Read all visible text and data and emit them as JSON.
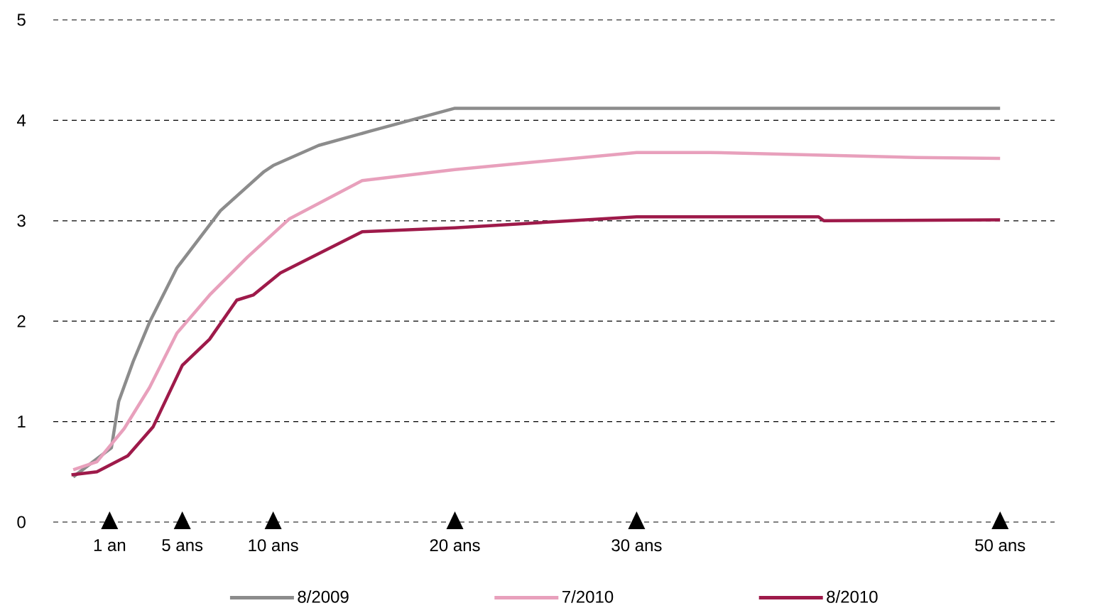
{
  "chart_data": {
    "type": "line",
    "xlim": [
      -2.1,
      53
    ],
    "ylim": [
      0,
      5
    ],
    "xticks": [
      {
        "value": 1,
        "label": "1 an"
      },
      {
        "value": 5,
        "label": "5 ans"
      },
      {
        "value": 10,
        "label": "10 ans"
      },
      {
        "value": 20,
        "label": "20 ans"
      },
      {
        "value": 30,
        "label": "30 ans"
      },
      {
        "value": 50,
        "label": "50 ans"
      }
    ],
    "yticks": [
      0,
      1,
      2,
      3,
      4,
      5
    ],
    "grid": "y",
    "legend": "bottom",
    "series": [
      {
        "name": "8/2009",
        "color": "#8c8c8c",
        "x": [
          -1.0,
          1.1,
          1.5,
          2.3,
          3.2,
          4.7,
          7.1,
          9.5,
          10,
          12.5,
          15.3,
          20,
          50
        ],
        "values": [
          0.45,
          0.74,
          1.2,
          1.6,
          1.99,
          2.53,
          3.1,
          3.49,
          3.55,
          3.75,
          3.89,
          4.12,
          4.12
        ]
      },
      {
        "name": "7/2010",
        "color": "#e8a0bc",
        "x": [
          -1.0,
          0.3,
          1.8,
          3.2,
          4.7,
          6.5,
          8.6,
          10.9,
          14.9,
          20,
          30,
          34,
          45.4,
          50
        ],
        "values": [
          0.52,
          0.6,
          0.93,
          1.34,
          1.88,
          2.26,
          2.64,
          3.02,
          3.4,
          3.51,
          3.68,
          3.68,
          3.63,
          3.62
        ]
      },
      {
        "name": "8/2010",
        "color": "#9e1a4a",
        "x": [
          -1.1,
          0.3,
          2.0,
          3.4,
          5,
          6.5,
          8.0,
          8.9,
          10.4,
          14.9,
          20,
          30,
          40,
          40.3,
          50
        ],
        "values": [
          0.47,
          0.5,
          0.66,
          0.95,
          1.56,
          1.82,
          2.21,
          2.26,
          2.48,
          2.89,
          2.93,
          3.04,
          3.04,
          3.0,
          3.01
        ]
      }
    ]
  }
}
